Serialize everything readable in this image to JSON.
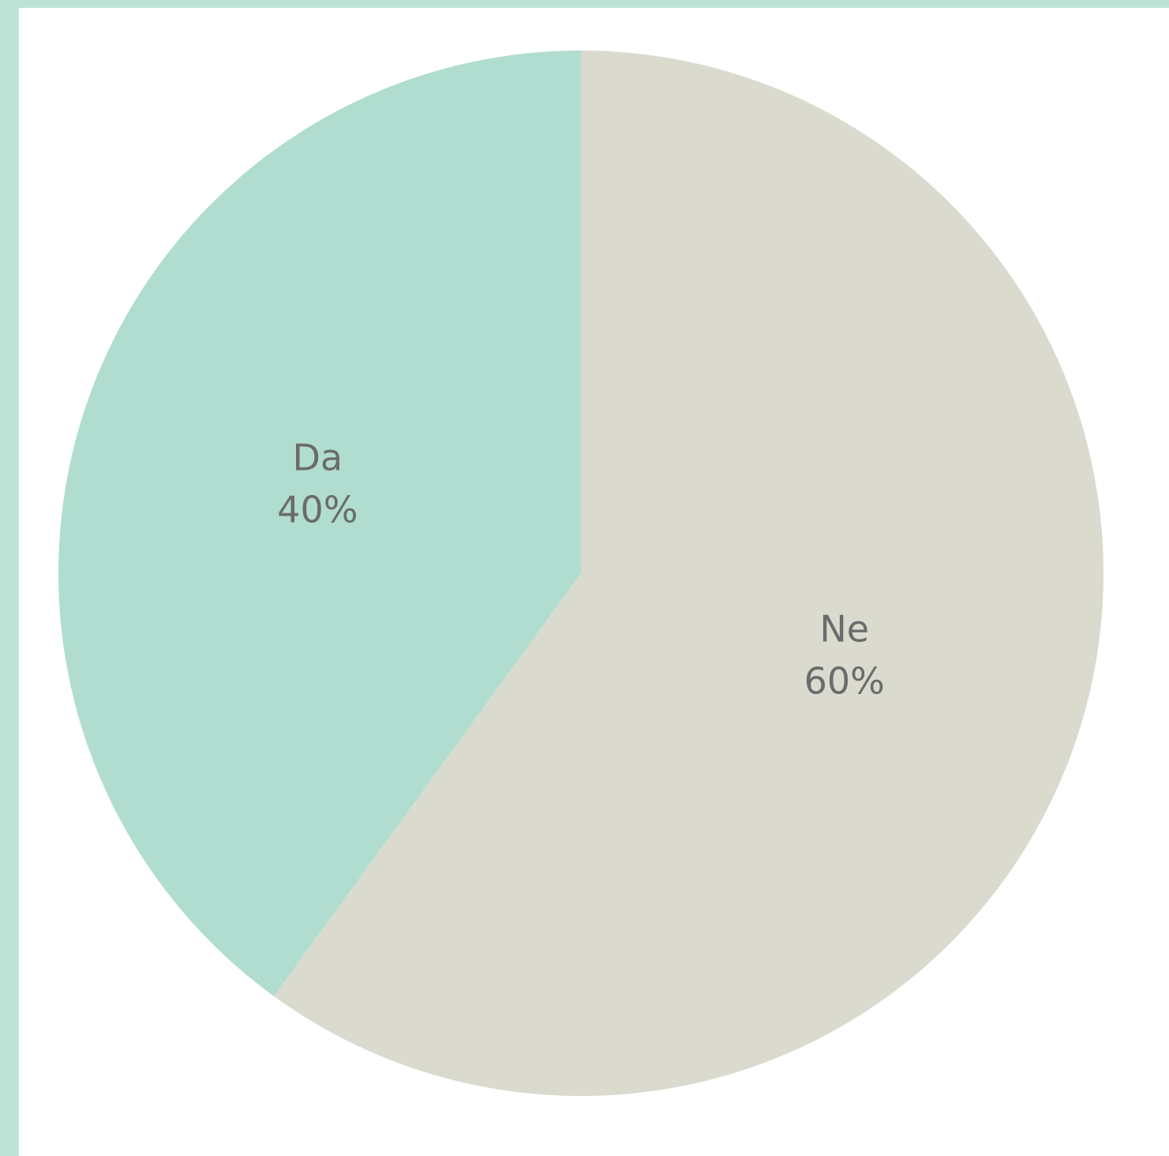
{
  "chart_data": {
    "type": "pie",
    "title": "",
    "start_angle_deg": 0,
    "direction": "clockwise",
    "slices": [
      {
        "label": "Ne",
        "value": 60,
        "display": "60%",
        "color": "#dbdace"
      },
      {
        "label": "Da",
        "value": 40,
        "display": "40%",
        "color": "#b0ddcf"
      }
    ],
    "frame_color": "#bde3d7",
    "label_color": "#6b6b6b"
  }
}
